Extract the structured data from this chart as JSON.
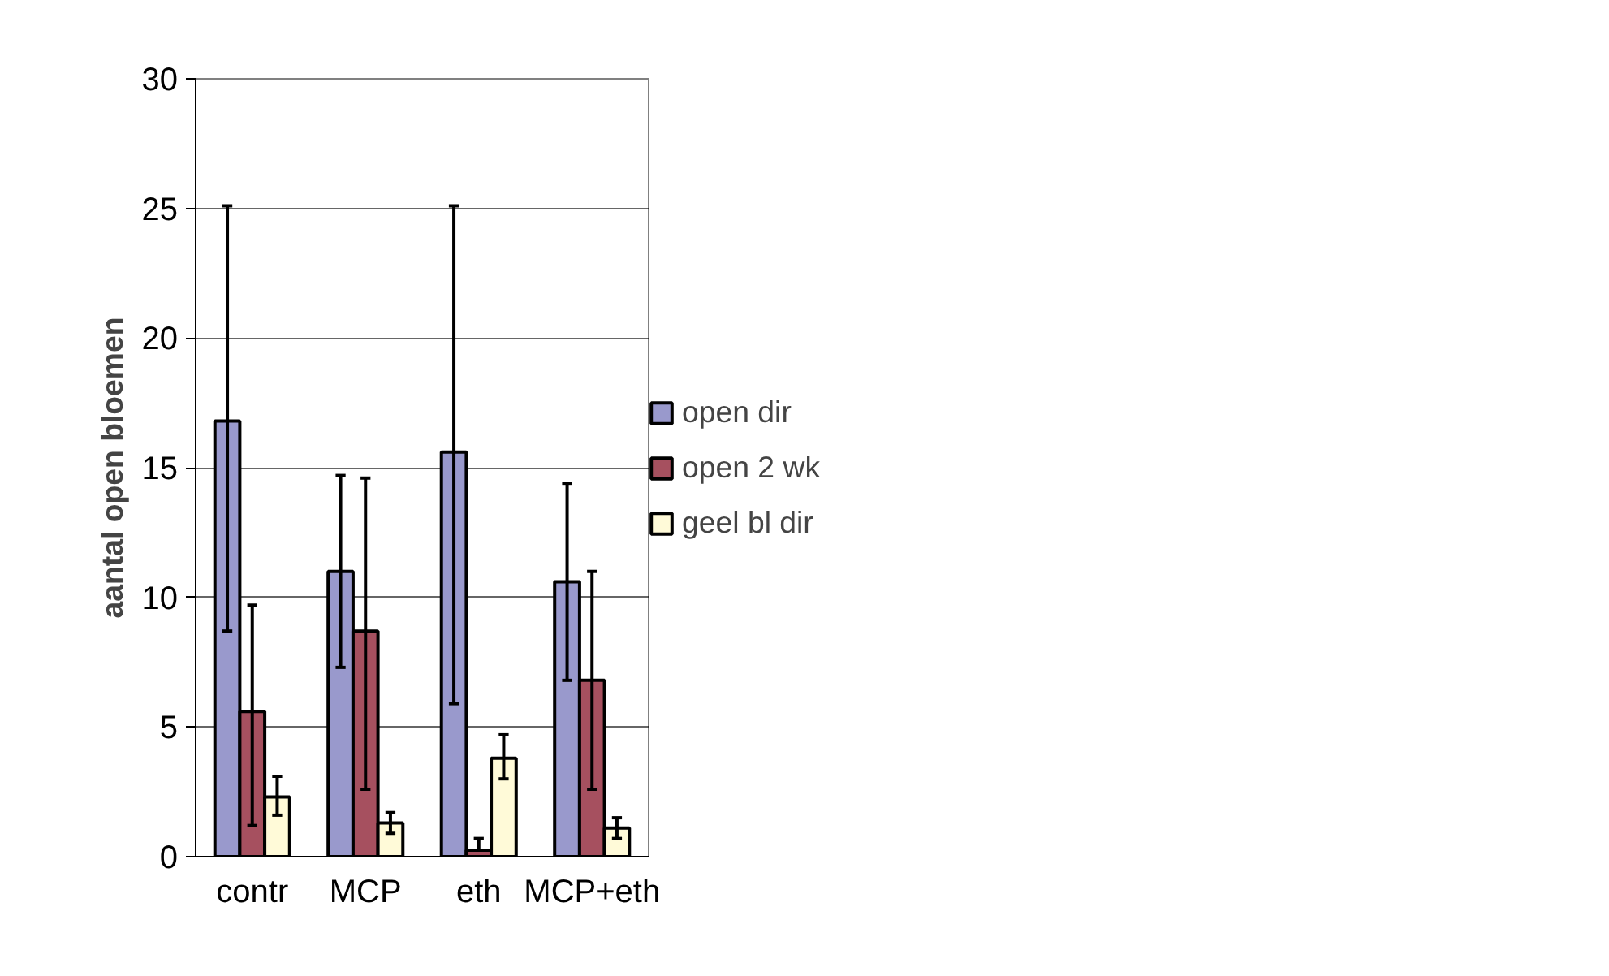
{
  "chart_data": {
    "type": "bar",
    "ylabel": "aantal open bloemen",
    "categories": [
      "contr",
      "MCP",
      "eth",
      "MCP+eth"
    ],
    "series": [
      {
        "name": "open dir",
        "color": "#9999cc",
        "values": [
          16.8,
          11.0,
          15.6,
          10.6
        ],
        "errors": [
          [
            8.7,
            25.1
          ],
          [
            7.3,
            14.7
          ],
          [
            5.9,
            25.1
          ],
          [
            6.8,
            14.4
          ]
        ]
      },
      {
        "name": "open 2 wk",
        "color": "#a6505f",
        "values": [
          5.6,
          8.7,
          0.25,
          6.8
        ],
        "errors": [
          [
            1.2,
            9.7
          ],
          [
            2.6,
            14.6
          ],
          [
            0.25,
            0.7
          ],
          [
            2.6,
            11.0
          ]
        ]
      },
      {
        "name": "geel bl dir",
        "color": "#fffad8",
        "values": [
          2.3,
          1.3,
          3.8,
          1.1
        ],
        "errors": [
          [
            1.6,
            3.1
          ],
          [
            0.9,
            1.7
          ],
          [
            3.0,
            4.7
          ],
          [
            0.7,
            1.5
          ]
        ]
      }
    ],
    "ylim": [
      0,
      30
    ],
    "yticks": [
      0,
      5,
      10,
      15,
      20,
      25,
      30
    ],
    "grid": "y",
    "legend": "right"
  }
}
